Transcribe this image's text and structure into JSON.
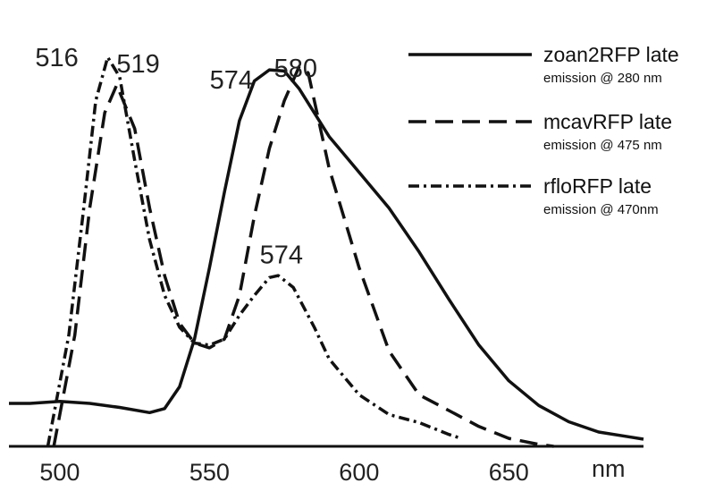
{
  "chart_data": {
    "type": "line",
    "title": "",
    "xlabel": "nm",
    "ylabel": "",
    "xlim": [
      483,
      695
    ],
    "ylim": [
      0,
      1
    ],
    "x_ticks": [
      500,
      550,
      600,
      650
    ],
    "grid": false,
    "legend_position": "top-right",
    "series": [
      {
        "name": "zoan2RFP late",
        "subtitle": "emission @ 280 nm",
        "style": "solid",
        "points": [
          [
            483,
            0.108
          ],
          [
            490,
            0.108
          ],
          [
            500,
            0.113
          ],
          [
            510,
            0.108
          ],
          [
            520,
            0.098
          ],
          [
            530,
            0.085
          ],
          [
            535,
            0.095
          ],
          [
            540,
            0.15
          ],
          [
            545,
            0.27
          ],
          [
            550,
            0.45
          ],
          [
            555,
            0.64
          ],
          [
            560,
            0.82
          ],
          [
            565,
            0.92
          ],
          [
            570,
            0.948
          ],
          [
            575,
            0.945
          ],
          [
            580,
            0.9
          ],
          [
            590,
            0.78
          ],
          [
            600,
            0.69
          ],
          [
            610,
            0.6
          ],
          [
            620,
            0.49
          ],
          [
            630,
            0.37
          ],
          [
            640,
            0.255
          ],
          [
            650,
            0.165
          ],
          [
            660,
            0.103
          ],
          [
            670,
            0.062
          ],
          [
            680,
            0.036
          ],
          [
            690,
            0.024
          ],
          [
            695,
            0.018
          ]
        ]
      },
      {
        "name": "mcavRFP late",
        "subtitle": "emission @ 475 nm",
        "style": "dashed",
        "points": [
          [
            498,
            0.0
          ],
          [
            505,
            0.28
          ],
          [
            510,
            0.6
          ],
          [
            515,
            0.84
          ],
          [
            519,
            0.91
          ],
          [
            525,
            0.8
          ],
          [
            530,
            0.6
          ],
          [
            535,
            0.43
          ],
          [
            540,
            0.31
          ],
          [
            545,
            0.26
          ],
          [
            550,
            0.248
          ],
          [
            555,
            0.27
          ],
          [
            560,
            0.38
          ],
          [
            565,
            0.58
          ],
          [
            570,
            0.75
          ],
          [
            575,
            0.87
          ],
          [
            580,
            0.957
          ],
          [
            583,
            0.94
          ],
          [
            590,
            0.7
          ],
          [
            600,
            0.45
          ],
          [
            610,
            0.24
          ],
          [
            620,
            0.13
          ],
          [
            630,
            0.09
          ],
          [
            640,
            0.05
          ],
          [
            650,
            0.02
          ],
          [
            660,
            0.005
          ],
          [
            665,
            0.0
          ]
        ]
      },
      {
        "name": "rfloRFP late",
        "subtitle": "emission @ 470nm",
        "style": "dashdot",
        "points": [
          [
            496,
            0.0
          ],
          [
            503,
            0.28
          ],
          [
            508,
            0.6
          ],
          [
            512,
            0.87
          ],
          [
            516,
            0.98
          ],
          [
            520,
            0.93
          ],
          [
            525,
            0.72
          ],
          [
            530,
            0.52
          ],
          [
            535,
            0.38
          ],
          [
            540,
            0.3
          ],
          [
            545,
            0.26
          ],
          [
            550,
            0.255
          ],
          [
            555,
            0.27
          ],
          [
            560,
            0.33
          ],
          [
            565,
            0.38
          ],
          [
            570,
            0.425
          ],
          [
            573,
            0.43
          ],
          [
            578,
            0.4
          ],
          [
            585,
            0.3
          ],
          [
            590,
            0.22
          ],
          [
            600,
            0.13
          ],
          [
            610,
            0.08
          ],
          [
            620,
            0.06
          ],
          [
            630,
            0.03
          ],
          [
            634,
            0.02
          ]
        ]
      }
    ],
    "annotations": [
      {
        "text": "516",
        "series": 2,
        "x": 516
      },
      {
        "text": "519",
        "series": 1,
        "x": 519
      },
      {
        "text": "574",
        "series": 0,
        "x": 574
      },
      {
        "text": "580",
        "series": 1,
        "x": 580
      },
      {
        "text": "574",
        "series": 2,
        "x": 574
      }
    ]
  }
}
